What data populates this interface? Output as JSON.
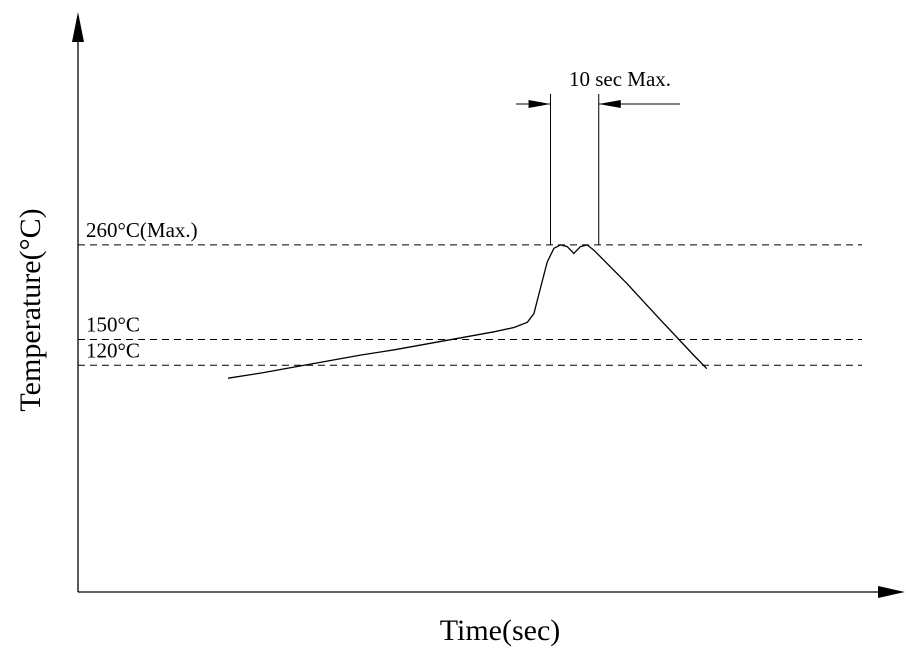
{
  "chart_data": {
    "type": "line",
    "title": "",
    "xlabel": "Time(sec)",
    "ylabel": "Temperature(°C)",
    "reference_lines": [
      {
        "value": 260,
        "label": "260°C(Max.)"
      },
      {
        "value": 150,
        "label": "150°C"
      },
      {
        "value": 120,
        "label": "120°C"
      }
    ],
    "annotation": {
      "label": "10 sec Max."
    },
    "series": [
      {
        "x": [
          0,
          10,
          20,
          30,
          40,
          50,
          60,
          70,
          80,
          86,
          90,
          92,
          94,
          96,
          98,
          100,
          102,
          104,
          106,
          108,
          110,
          120,
          130,
          140,
          144
        ],
        "y": [
          105,
          111,
          118,
          125,
          132,
          138,
          145,
          152,
          159,
          164,
          170,
          180,
          210,
          240,
          256,
          260,
          258,
          250,
          258,
          260,
          254,
          215,
          173,
          132,
          116
        ]
      }
    ],
    "line_color": "#000000"
  }
}
